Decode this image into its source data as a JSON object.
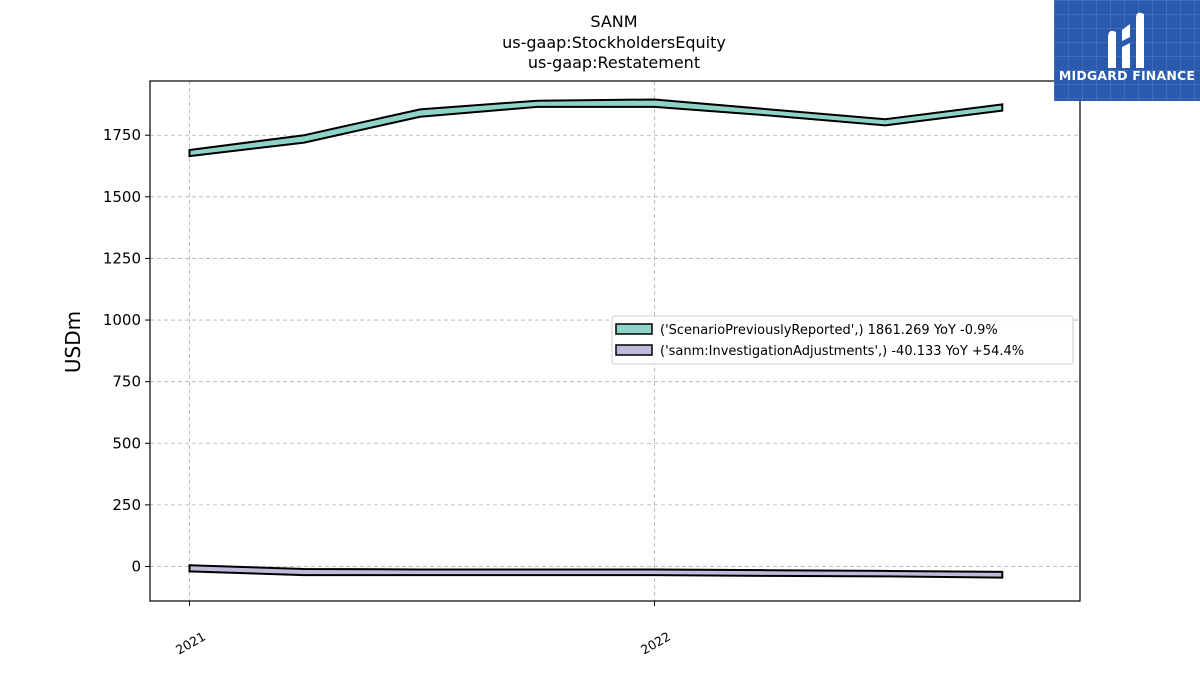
{
  "chart_data": {
    "type": "area",
    "title_lines": [
      "SANM",
      "us-gaap:StockholdersEquity",
      "us-gaap:Restatement"
    ],
    "ylabel": "USDm",
    "ylim": [
      -140,
      1970
    ],
    "yticks": [
      0,
      250,
      500,
      750,
      1000,
      1250,
      1500,
      1750
    ],
    "xlim": [
      "2020-12-01",
      "2022-12-01"
    ],
    "xticks": [
      {
        "date": "2021-01-01",
        "label": "2021"
      },
      {
        "date": "2022-01-01",
        "label": "2022"
      }
    ],
    "grid": true,
    "legend_position": "center-right",
    "series": [
      {
        "name": "('ScenarioPreviouslyReported',) 1861.269 YoY -0.9%",
        "color": "#8dd3c7",
        "points": [
          {
            "x": "2021-01-01",
            "low": 1665,
            "high": 1690
          },
          {
            "x": "2021-04-01",
            "low": 1720,
            "high": 1750
          },
          {
            "x": "2021-07-01",
            "low": 1825,
            "high": 1855
          },
          {
            "x": "2021-10-01",
            "low": 1865,
            "high": 1890
          },
          {
            "x": "2022-01-01",
            "low": 1865,
            "high": 1895
          },
          {
            "x": "2022-04-01",
            "low": 1830,
            "high": 1855
          },
          {
            "x": "2022-07-01",
            "low": 1790,
            "high": 1815
          },
          {
            "x": "2022-10-01",
            "low": 1850,
            "high": 1875
          }
        ]
      },
      {
        "name": "('sanm:InvestigationAdjustments',) -40.133 YoY +54.4%",
        "color": "#bebada",
        "points": [
          {
            "x": "2021-01-01",
            "low": -20,
            "high": 5
          },
          {
            "x": "2021-04-01",
            "low": -35,
            "high": -10
          },
          {
            "x": "2021-07-01",
            "low": -35,
            "high": -12
          },
          {
            "x": "2021-10-01",
            "low": -35,
            "high": -12
          },
          {
            "x": "2022-01-01",
            "low": -35,
            "high": -12
          },
          {
            "x": "2022-04-01",
            "low": -38,
            "high": -15
          },
          {
            "x": "2022-07-01",
            "low": -40,
            "high": -18
          },
          {
            "x": "2022-10-01",
            "low": -45,
            "high": -22
          }
        ]
      }
    ]
  },
  "logo": {
    "text": "MIDGARD FINANCE",
    "icon": "midgard-logo-icon",
    "background": "#2a5aae"
  }
}
